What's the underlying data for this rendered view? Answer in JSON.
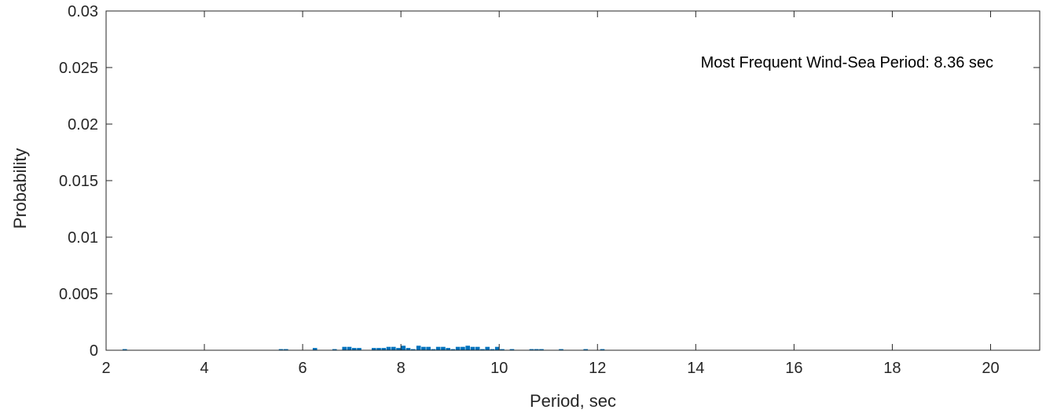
{
  "chart_data": {
    "type": "bar",
    "title": "",
    "xlabel": "Period, sec",
    "ylabel": "Probability",
    "xlim": [
      2,
      21
    ],
    "ylim": [
      0,
      0.03
    ],
    "xticks": [
      2,
      4,
      6,
      8,
      10,
      12,
      14,
      16,
      18,
      20
    ],
    "xtick_labels": [
      "2",
      "4",
      "6",
      "8",
      "10",
      "12",
      "14",
      "16",
      "18",
      "20"
    ],
    "yticks": [
      0,
      0.005,
      0.01,
      0.015,
      0.02,
      0.025,
      0.03
    ],
    "ytick_labels": [
      "0",
      "0.005",
      "0.01",
      "0.015",
      "0.02",
      "0.025",
      "0.03"
    ],
    "annotation": "Most Frequent Wind-Sea Period: 8.36 sec",
    "bar_color": "#0072bd",
    "grid": false,
    "x": [
      2.38,
      5.56,
      5.66,
      6.25,
      6.65,
      6.85,
      6.95,
      7.05,
      7.15,
      7.45,
      7.55,
      7.65,
      7.75,
      7.85,
      7.95,
      8.05,
      8.15,
      8.25,
      8.36,
      8.46,
      8.56,
      8.66,
      8.76,
      8.86,
      8.96,
      9.06,
      9.16,
      9.26,
      9.36,
      9.46,
      9.56,
      9.66,
      9.76,
      9.86,
      9.96,
      10.06,
      10.26,
      10.66,
      10.76,
      10.86,
      11.26,
      11.76,
      12.1
    ],
    "values": [
      0.0001,
      0.0001,
      0.0001,
      0.0002,
      0.0001,
      0.0003,
      0.0003,
      0.0002,
      0.0002,
      0.0002,
      0.0002,
      0.0002,
      0.0003,
      0.0003,
      0.0002,
      0.0004,
      0.0002,
      0.0001,
      0.0004,
      0.0003,
      0.0003,
      0.0001,
      0.0003,
      0.0003,
      0.0002,
      0.0001,
      0.0003,
      0.0003,
      0.0004,
      0.0003,
      0.0003,
      0.0001,
      0.0003,
      0.0001,
      0.0003,
      0.0001,
      0.0001,
      0.0001,
      0.0001,
      0.0001,
      0.0001,
      0.0001,
      0.0001
    ],
    "bar_width": 0.09
  }
}
